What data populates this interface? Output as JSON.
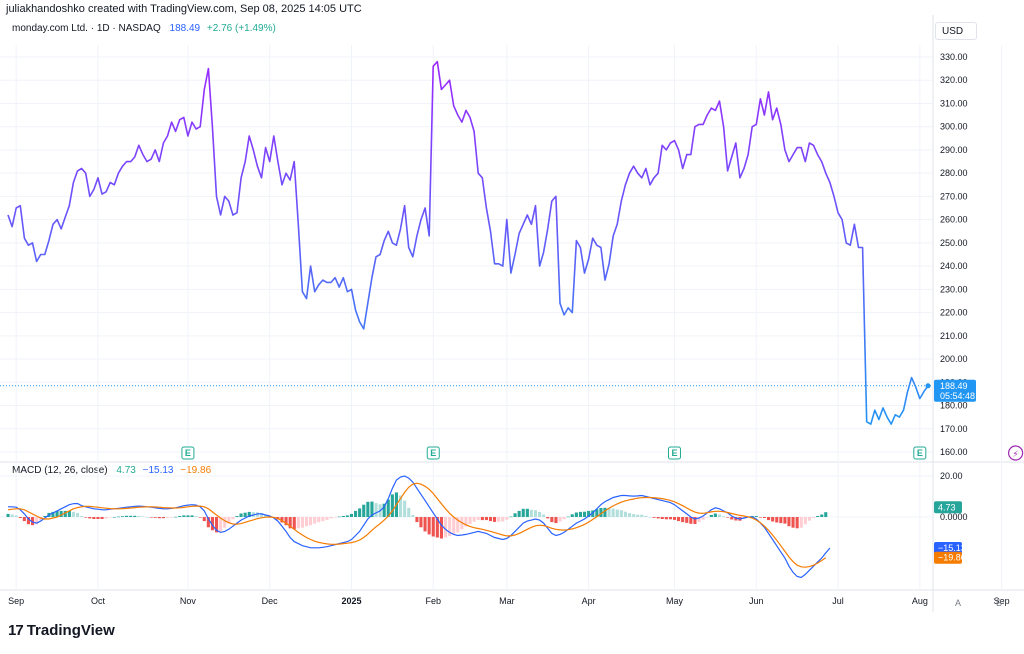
{
  "attribution": "juliakhandoshko created with TradingView.com, Sep 08, 2025 14:05 UTC",
  "legend": {
    "symbol": "monday.com Ltd. · 1D · NASDAQ",
    "price": "188.49",
    "change": "+2.76 (+1.49%)"
  },
  "currency": "USD",
  "price_label": {
    "value": "188.49",
    "countdown": "05:54:48"
  },
  "macd_legend": {
    "title": "MACD (12, 26, close)",
    "macd": "4.73",
    "line": "−15.13",
    "signal": "−19.86"
  },
  "macd_tags": {
    "hist": "4.73",
    "line": "−15.13",
    "signal": "−19.86"
  },
  "earnings_marker": "E",
  "dividend_marker": "⚡",
  "footer_brand": "TradingView",
  "footer_mark": "17",
  "corner_a": "A",
  "corner_b": "B",
  "colors": {
    "price_top": "#9c27ff",
    "price_bottom": "#2196f3",
    "macd_line": "#2962ff",
    "signal_line": "#f57c00",
    "hist_pos": "#26a69a",
    "hist_neg": "#ef5350",
    "earnings": "#22ab94"
  },
  "chart_data": [
    {
      "type": "line",
      "title": "monday.com Ltd. · 1D · NASDAQ",
      "ylabel": "USD",
      "ylim": [
        155,
        335
      ],
      "y_ticks": [
        "330.00",
        "320.00",
        "310.00",
        "300.00",
        "290.00",
        "280.00",
        "270.00",
        "260.00",
        "250.00",
        "240.00",
        "230.00",
        "220.00",
        "210.00",
        "200.00",
        "190.00",
        "180.00",
        "170.00",
        "160.00"
      ],
      "x_ticks": [
        "Sep",
        "Oct",
        "Nov",
        "Dec",
        "2025",
        "Feb",
        "Mar",
        "Apr",
        "May",
        "Jun",
        "Jul",
        "Aug",
        "Sep"
      ],
      "x_tick_index": [
        2,
        22,
        44,
        64,
        84,
        104,
        122,
        142,
        163,
        183,
        203,
        223,
        243
      ],
      "series": [
        {
          "values": [
            262,
            257,
            265,
            266,
            252,
            249,
            250,
            242,
            245,
            245,
            251,
            258,
            260,
            256,
            261,
            266,
            276,
            281,
            282,
            280,
            270,
            273,
            278,
            271,
            272,
            276,
            275,
            280,
            283,
            285,
            285,
            287,
            292,
            288,
            285,
            286,
            290,
            285,
            293,
            296,
            302,
            298,
            303,
            304,
            296,
            302,
            299,
            300,
            316,
            325,
            300,
            270,
            262,
            270,
            268,
            262,
            263,
            278,
            285,
            296,
            290,
            283,
            278,
            291,
            285,
            296,
            285,
            275,
            280,
            277,
            285,
            258,
            229,
            226,
            240,
            229,
            232,
            234,
            233,
            233,
            235,
            231,
            235,
            229,
            230,
            221,
            216,
            213,
            224,
            235,
            244,
            245,
            251,
            255,
            250,
            249,
            256,
            266,
            248,
            244,
            253,
            260,
            265,
            253,
            326,
            328,
            316,
            318,
            320,
            309,
            305,
            302,
            307,
            304,
            298,
            280,
            278,
            265,
            255,
            241,
            241,
            240,
            260,
            237,
            245,
            254,
            258,
            262,
            258,
            266,
            240,
            246,
            256,
            268,
            270,
            224,
            219,
            222,
            220,
            251,
            248,
            237,
            243,
            252,
            249,
            248,
            234,
            241,
            253,
            258,
            268,
            275,
            280,
            283,
            280,
            278,
            282,
            275,
            278,
            280,
            292,
            290,
            293,
            294,
            290,
            282,
            288,
            288,
            300,
            301,
            301,
            305,
            308,
            307,
            311,
            300,
            281,
            287,
            293,
            278,
            282,
            288,
            300,
            301,
            312,
            305,
            315,
            303,
            308,
            301,
            290,
            285,
            288,
            291,
            291,
            285,
            293,
            292,
            288,
            285,
            280,
            276,
            270,
            263,
            260,
            250,
            249,
            258,
            248,
            248,
            173,
            172,
            178,
            174,
            179,
            175,
            172,
            176,
            175,
            178,
            186,
            192,
            188,
            183,
            186,
            188.49
          ]
        }
      ]
    },
    {
      "type": "bar",
      "title": "MACD (12, 26, close)",
      "ylim": [
        -32,
        25
      ],
      "y_ticks": [
        "20.00",
        "0.0000"
      ],
      "series": [
        {
          "name": "MACD",
          "values": [
            5.0,
            5.0,
            4.8,
            3.5,
            1.5,
            -1.0,
            -2.5,
            -3.0,
            -2.0,
            -0.5,
            1.0,
            2.0,
            3.0,
            4.0,
            5.0,
            6.0,
            6.5,
            6.6,
            5.5,
            5.0,
            4.5,
            4.0,
            3.8,
            3.5,
            3.5,
            3.8,
            4.0,
            4.2,
            4.5,
            4.8,
            5.0,
            5.2,
            5.3,
            5.2,
            5.0,
            4.8,
            4.5,
            4.2,
            4.0,
            4.0,
            4.2,
            4.5,
            5.0,
            5.5,
            5.8,
            6.0,
            5.8,
            5.0,
            3.0,
            -1.0,
            -4.0,
            -6.5,
            -7.5,
            -7.0,
            -6.0,
            -4.5,
            -3.0,
            -1.5,
            -0.5,
            0.5,
            1.0,
            1.5,
            1.5,
            1.0,
            0.5,
            -0.5,
            -2.0,
            -4.5,
            -7.0,
            -10.0,
            -12.0,
            -13.0,
            -14.0,
            -14.5,
            -15.0,
            -15.0,
            -15.0,
            -14.8,
            -14.5,
            -14.0,
            -13.5,
            -13.0,
            -12.5,
            -12.0,
            -11.0,
            -9.0,
            -7.0,
            -4.0,
            -1.0,
            1.0,
            2.0,
            3.0,
            5.0,
            9.0,
            14.0,
            18.0,
            19.5,
            20.0,
            19.0,
            17.0,
            14.0,
            11.0,
            8.0,
            5.0,
            2.0,
            -1.0,
            -4.0,
            -6.0,
            -7.5,
            -8.5,
            -9.0,
            -8.8,
            -8.5,
            -8.0,
            -7.5,
            -7.0,
            -7.5,
            -8.0,
            -9.0,
            -10.0,
            -10.5,
            -11.0,
            -10.5,
            -9.0,
            -7.0,
            -5.0,
            -3.0,
            -2.0,
            -1.5,
            -1.0,
            -1.5,
            -3.0,
            -5.5,
            -8.0,
            -9.0,
            -8.5,
            -7.5,
            -6.0,
            -4.5,
            -3.0,
            -2.0,
            -1.0,
            0.5,
            2.0,
            4.0,
            6.0,
            7.5,
            8.5,
            9.5,
            10.0,
            10.5,
            10.5,
            10.3,
            10.2,
            10.3,
            10.5,
            10.0,
            9.5,
            9.0,
            8.5,
            8.0,
            7.5,
            7.0,
            6.0,
            4.5,
            3.0,
            1.5,
            0.0,
            -1.0,
            -0.5,
            0.5,
            2.0,
            3.5,
            4.5,
            4.0,
            3.0,
            2.0,
            0.5,
            -0.5,
            -1.0,
            -0.5,
            0.0,
            0.0,
            -1.0,
            -3.0,
            -5.0,
            -8.0,
            -11.0,
            -14.0,
            -17.0,
            -20.0,
            -24.0,
            -27.0,
            -29.0,
            -29.5,
            -28.0,
            -26.0,
            -24.0,
            -22.0,
            -20.0,
            -17.5,
            -15.13
          ]
        },
        {
          "name": "Signal",
          "values": [
            3.5,
            3.8,
            4.0,
            4.0,
            3.5,
            2.5,
            1.5,
            0.5,
            -0.5,
            -1.0,
            -1.0,
            -0.5,
            0.0,
            1.0,
            2.0,
            3.0,
            4.0,
            4.6,
            5.0,
            5.2,
            5.2,
            5.0,
            4.8,
            4.5,
            4.3,
            4.1,
            4.0,
            4.0,
            4.1,
            4.2,
            4.4,
            4.6,
            4.8,
            4.9,
            5.0,
            5.0,
            4.9,
            4.8,
            4.6,
            4.5,
            4.4,
            4.4,
            4.5,
            4.7,
            5.0,
            5.2,
            5.3,
            5.3,
            5.0,
            4.0,
            2.5,
            1.0,
            -0.5,
            -1.8,
            -2.8,
            -3.4,
            -3.5,
            -3.2,
            -2.6,
            -2.0,
            -1.4,
            -0.8,
            -0.4,
            -0.1,
            0.0,
            -0.2,
            -0.8,
            -1.8,
            -3.0,
            -4.5,
            -6.0,
            -7.5,
            -8.8,
            -10.0,
            -11.0,
            -11.8,
            -12.4,
            -12.8,
            -13.1,
            -13.3,
            -13.3,
            -13.2,
            -13.0,
            -12.8,
            -12.5,
            -12.0,
            -11.2,
            -10.0,
            -8.4,
            -6.5,
            -4.8,
            -3.2,
            -1.5,
            0.5,
            3.0,
            6.0,
            9.0,
            12.0,
            14.5,
            16.0,
            16.5,
            16.0,
            15.0,
            13.5,
            11.5,
            9.0,
            6.5,
            4.0,
            1.8,
            0.0,
            -1.5,
            -2.8,
            -3.8,
            -4.6,
            -5.2,
            -5.6,
            -6.0,
            -6.5,
            -7.0,
            -7.6,
            -8.2,
            -8.8,
            -9.2,
            -9.2,
            -8.8,
            -8.0,
            -7.0,
            -6.0,
            -5.0,
            -4.3,
            -4.0,
            -4.2,
            -4.8,
            -5.5,
            -6.0,
            -6.3,
            -6.4,
            -6.2,
            -5.8,
            -5.2,
            -4.5,
            -3.6,
            -2.5,
            -1.2,
            0.2,
            1.6,
            3.0,
            4.3,
            5.4,
            6.4,
            7.2,
            7.9,
            8.4,
            8.8,
            9.2,
            9.4,
            9.5,
            9.5,
            9.4,
            9.2,
            9.0,
            8.6,
            8.1,
            7.4,
            6.5,
            5.5,
            4.4,
            3.3,
            2.4,
            1.9,
            1.8,
            2.1,
            2.5,
            2.8,
            2.8,
            2.6,
            2.2,
            1.7,
            1.2,
            0.8,
            0.5,
            0.1,
            -0.5,
            -1.5,
            -2.8,
            -4.5,
            -6.5,
            -8.8,
            -11.3,
            -14.0,
            -16.8,
            -19.5,
            -21.8,
            -23.5,
            -24.3,
            -24.5,
            -24.2,
            -23.5,
            -22.5,
            -21.2,
            -19.86
          ]
        }
      ]
    }
  ]
}
